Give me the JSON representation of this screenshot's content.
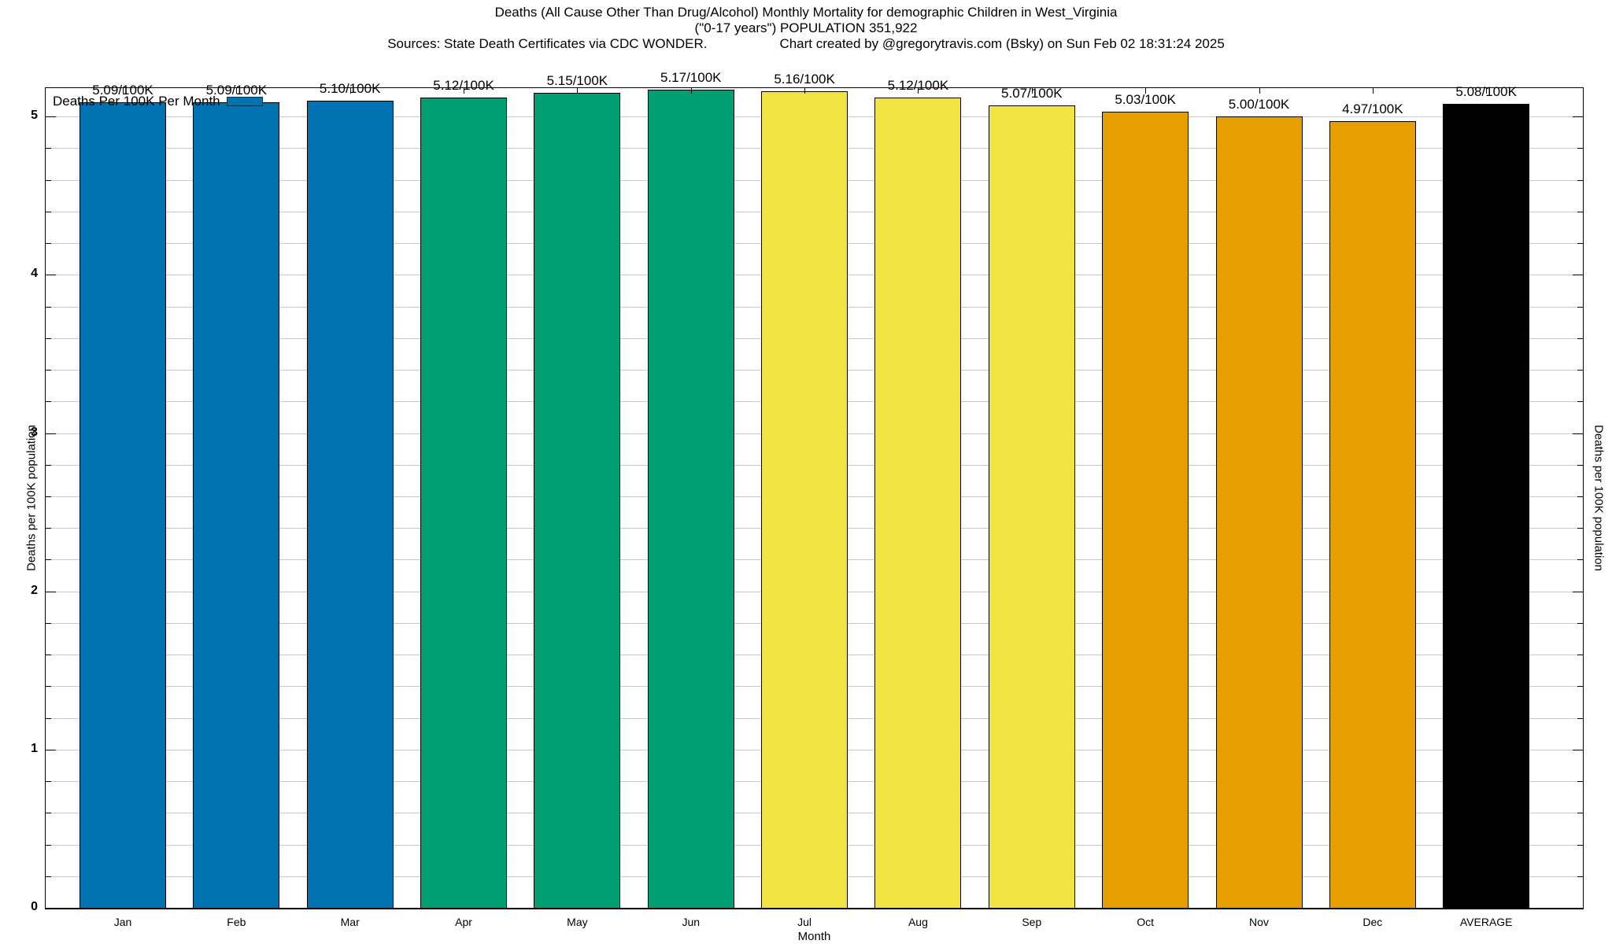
{
  "header": {
    "title_line1": "Deaths (All Cause Other Than Drug/Alcohol) Monthly Mortality for demographic Children in West_Virginia",
    "title_line2": "(\"0-17 years\") POPULATION 351,922",
    "sources": "Sources: State Death Certificates via CDC WONDER.",
    "credit": "Chart created by @gregorytravis.com (Bsky) on Sun Feb 02 18:31:24 2025"
  },
  "legend": {
    "label": "Deaths Per 100K Per Month",
    "swatch_color": "#0072B2",
    "position": "top-left"
  },
  "axes": {
    "xlabel": "Month",
    "ylabel_left": "Deaths per 100K population",
    "ylabel_right": "Deaths per 100K population"
  },
  "chart_data": {
    "type": "bar",
    "title": "Deaths (All Cause Other Than Drug/Alcohol) Monthly Mortality for demographic Children in West_Virginia (\"0-17 years\") POPULATION 351,922",
    "categories": [
      "Jan",
      "Feb",
      "Mar",
      "Apr",
      "May",
      "Jun",
      "Jul",
      "Aug",
      "Sep",
      "Oct",
      "Nov",
      "Dec",
      "AVERAGE"
    ],
    "values": [
      5.09,
      5.09,
      5.1,
      5.12,
      5.15,
      5.17,
      5.16,
      5.12,
      5.07,
      5.03,
      5.0,
      4.97,
      5.08
    ],
    "bar_labels": [
      "5.09/100K",
      "5.09/100K",
      "5.10/100K",
      "5.12/100K",
      "5.15/100K",
      "5.17/100K",
      "5.16/100K",
      "5.12/100K",
      "5.07/100K",
      "5.03/100K",
      "5.00/100K",
      "4.97/100K",
      "5.08/100K"
    ],
    "bar_colors": [
      "#0072B2",
      "#0072B2",
      "#0072B2",
      "#009E73",
      "#009E73",
      "#009E73",
      "#F0E442",
      "#F0E442",
      "#F0E442",
      "#E69F00",
      "#E69F00",
      "#E69F00",
      "#000000"
    ],
    "xlabel": "Month",
    "ylabel": "Deaths per 100K population",
    "ylim": [
      0,
      5.18
    ],
    "yticks": [
      0,
      1,
      2,
      3,
      4,
      5
    ],
    "minor_grid_step": 0.2,
    "grid": "horizontal-minor",
    "grid_color": "#c8c8c8",
    "legend_entries": [
      {
        "label": "Deaths Per 100K Per Month",
        "color": "#0072B2"
      }
    ],
    "legend_position": "top-left"
  }
}
